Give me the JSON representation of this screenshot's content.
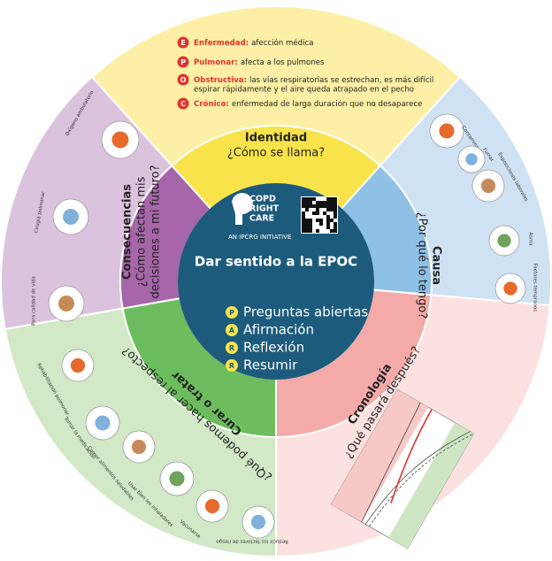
{
  "identity": {
    "list": [
      {
        "letter": "E",
        "term": "Enfermedad:",
        "desc": [
          "afección médica"
        ]
      },
      {
        "letter": "P",
        "term": "Pulmonar:",
        "desc": [
          "afecta a los pulmones"
        ]
      },
      {
        "letter": "O",
        "term": "Obstructiva:",
        "desc": [
          "las vías respiratorias se estrechan, es más difícil",
          "espirar rápidamente y el aire queda atrapado en el pecho"
        ]
      },
      {
        "letter": "C",
        "term": "Crónico:",
        "desc": [
          "enfermedad de larga duración que no desaparece"
        ]
      }
    ],
    "title": "Identidad",
    "question": "¿Cómo se llama?"
  },
  "cause": {
    "title": "Causa",
    "question": "¿Por qué lo tengo?",
    "items": [
      "Contaminación",
      "Fumar",
      "Exposiciones laborales",
      "Asma",
      "Factores tempranos"
    ]
  },
  "timeline": {
    "title": "Cronología",
    "question": "¿Qué pasará después?"
  },
  "treatment": {
    "title": "Curar o tratar",
    "question": "¿Qué podemos hacer al respecto?",
    "items": [
      "Rehabilitación pulmonar",
      "Tomar la medicación",
      "Comer alimentos saludables",
      "Usar bien los inhaladores",
      "Vacunarse",
      "Reducir los factores de riesgo"
    ]
  },
  "consequences": {
    "title": "Consecuencias",
    "question": [
      "¿Cómo afectan mis",
      "decisiones a mi futuro?"
    ],
    "items": [
      "Oxígeno ambulatorio",
      "Cirugía pulmonar",
      "Para calidad de vida"
    ]
  },
  "center": {
    "logo": [
      "COPD",
      "RIGHT",
      "CARE"
    ],
    "initiative": "AN IPCRG INITIATIVE",
    "title": "Dar sentido a la EPOC",
    "steps": [
      {
        "letter": "P",
        "text": "Preguntas abiertas"
      },
      {
        "letter": "A",
        "text": "Afirmación"
      },
      {
        "letter": "R",
        "text": "Reflexión"
      },
      {
        "letter": "R",
        "text": "Resumir"
      }
    ]
  }
}
